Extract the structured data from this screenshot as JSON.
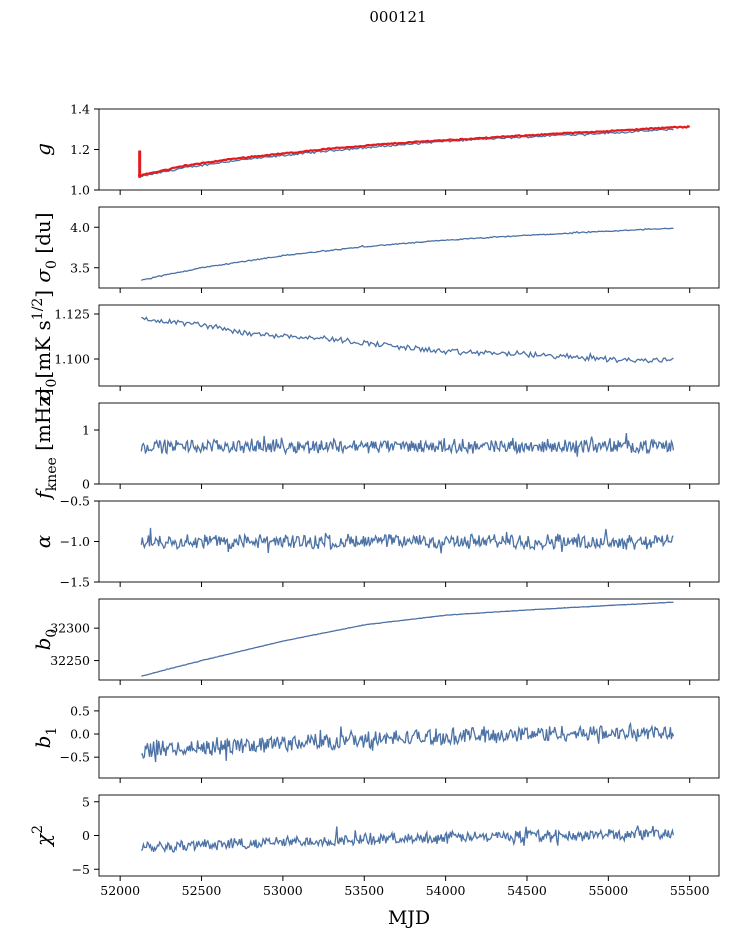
{
  "figure": {
    "suptitle": "000121"
  },
  "chart_data": [
    {
      "type": "line",
      "ylabel": "g",
      "ylim": [
        1.0,
        1.4
      ],
      "yticks": [
        1.0,
        1.2,
        1.4
      ],
      "ytick_labels": [
        "1.0",
        "1.2",
        "1.4"
      ],
      "xlim": [
        51870,
        55680
      ],
      "series": [
        {
          "name": "gain fit",
          "color": "#4c72a6",
          "x": [
            52115,
            52400,
            52700,
            53000,
            53300,
            53600,
            53900,
            54200,
            54500,
            54800,
            55100,
            55400
          ],
          "values": [
            1.065,
            1.11,
            1.145,
            1.17,
            1.195,
            1.215,
            1.235,
            1.25,
            1.262,
            1.275,
            1.285,
            1.3
          ]
        },
        {
          "name": "gain",
          "color": "#e41a1c",
          "x": [
            52110,
            52400,
            52700,
            53000,
            53300,
            53600,
            53900,
            54200,
            54500,
            54800,
            55100,
            55400,
            55500
          ],
          "values": [
            1.07,
            1.12,
            1.155,
            1.18,
            1.205,
            1.225,
            1.242,
            1.255,
            1.27,
            1.283,
            1.295,
            1.31,
            1.31
          ]
        }
      ],
      "spike": {
        "x": 52120,
        "range": [
          1.06,
          1.195
        ]
      },
      "noise": 0.004
    },
    {
      "type": "line",
      "ylabel": "σ0 [du]",
      "ylim": [
        3.25,
        4.25
      ],
      "yticks": [
        3.5,
        4.0
      ],
      "ytick_labels": [
        "3.5",
        "4.0"
      ],
      "xlim": [
        51870,
        55680
      ],
      "series": [
        {
          "name": "sigma0_du",
          "color": "#4c72a6",
          "x": [
            52130,
            52500,
            53000,
            53500,
            54000,
            54500,
            55000,
            55400
          ],
          "values": [
            3.35,
            3.5,
            3.65,
            3.76,
            3.84,
            3.9,
            3.95,
            3.99
          ]
        }
      ],
      "noise": 0.006
    },
    {
      "type": "line",
      "ylabel": "σ0[mK s1/2]",
      "ylim": [
        1.085,
        1.13
      ],
      "yticks": [
        1.1,
        1.125
      ],
      "ytick_labels": [
        "1.100",
        "1.125"
      ],
      "xlim": [
        51870,
        55680
      ],
      "series": [
        {
          "name": "sigma0_mK",
          "color": "#4c72a6",
          "x": [
            52130,
            52500,
            52800,
            53200,
            53600,
            54000,
            54400,
            54800,
            55200,
            55400
          ],
          "values": [
            1.122,
            1.119,
            1.114,
            1.112,
            1.108,
            1.104,
            1.103,
            1.101,
            1.099,
            1.1
          ]
        }
      ],
      "noise": 0.0014
    },
    {
      "type": "line",
      "ylabel": "fknee [mHz]",
      "ylim": [
        0,
        1.5
      ],
      "yticks": [
        0,
        1
      ],
      "ytick_labels": [
        "0",
        "1"
      ],
      "xlim": [
        51870,
        55680
      ],
      "series": [
        {
          "name": "fknee",
          "color": "#4c72a6",
          "x": [
            52130,
            55400
          ],
          "values": [
            0.7,
            0.7
          ]
        }
      ],
      "noise": 0.11
    },
    {
      "type": "line",
      "ylabel": "α",
      "ylim": [
        -1.5,
        -0.5
      ],
      "yticks": [
        -1.5,
        -1.0,
        -0.5
      ],
      "ytick_labels": [
        "−1.5",
        "−1.0",
        "−0.5"
      ],
      "xlim": [
        51870,
        55680
      ],
      "series": [
        {
          "name": "alpha",
          "color": "#4c72a6",
          "x": [
            52130,
            55400
          ],
          "values": [
            -1.0,
            -1.0
          ]
        }
      ],
      "noise": 0.08
    },
    {
      "type": "line",
      "ylabel": "b0",
      "ylim": [
        32220,
        32345
      ],
      "yticks": [
        32250,
        32300
      ],
      "ytick_labels": [
        "32250",
        "32300"
      ],
      "xlim": [
        51870,
        55680
      ],
      "series": [
        {
          "name": "b0",
          "color": "#4c72a6",
          "x": [
            52130,
            52500,
            53000,
            53500,
            54000,
            54500,
            55000,
            55400
          ],
          "values": [
            32226,
            32250,
            32280,
            32305,
            32320,
            32328,
            32335,
            32340
          ]
        }
      ],
      "noise": 0.3
    },
    {
      "type": "line",
      "ylabel": "b1",
      "ylim": [
        -0.95,
        0.8
      ],
      "yticks": [
        -0.5,
        0.0,
        0.5
      ],
      "ytick_labels": [
        "−0.5",
        "0.0",
        "0.5"
      ],
      "xlim": [
        51870,
        55680
      ],
      "series": [
        {
          "name": "b1",
          "color": "#4c72a6",
          "x": [
            52130,
            52500,
            53000,
            53500,
            54000,
            54500,
            55000,
            55400
          ],
          "values": [
            -0.35,
            -0.28,
            -0.2,
            -0.12,
            -0.05,
            0.0,
            0.02,
            0.05
          ]
        }
      ],
      "noise": 0.16
    },
    {
      "type": "line",
      "ylabel": "χ2",
      "ylim": [
        -6,
        6
      ],
      "yticks": [
        -5,
        0,
        5
      ],
      "ytick_labels": [
        "−5",
        "0",
        "5"
      ],
      "xlim": [
        51870,
        55680
      ],
      "xticks": [
        52000,
        52500,
        53000,
        53500,
        54000,
        54500,
        55000,
        55500
      ],
      "xtick_labels": [
        "52000",
        "52500",
        "53000",
        "53500",
        "54000",
        "54500",
        "55000",
        "55500"
      ],
      "xlabel": "MJD",
      "series": [
        {
          "name": "chi2",
          "color": "#4c72a6",
          "x": [
            52130,
            52500,
            53000,
            53500,
            54000,
            54500,
            55000,
            55400
          ],
          "values": [
            -1.6,
            -1.4,
            -1.0,
            -0.6,
            -0.3,
            -0.1,
            0.1,
            0.3
          ]
        }
      ],
      "noise": 0.75
    }
  ]
}
